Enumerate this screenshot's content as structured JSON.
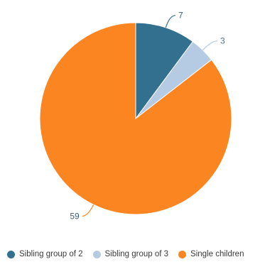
{
  "chart_data": {
    "type": "pie",
    "title": "",
    "categories": [
      "Sibling group of 2",
      "Sibling group of 3",
      "Single children"
    ],
    "values": [
      7,
      3,
      59
    ],
    "colors": [
      "#33708f",
      "#b5cbe4",
      "#fb8520"
    ],
    "data_labels": [
      "7",
      "3",
      "59"
    ],
    "legend_position": "bottom"
  }
}
